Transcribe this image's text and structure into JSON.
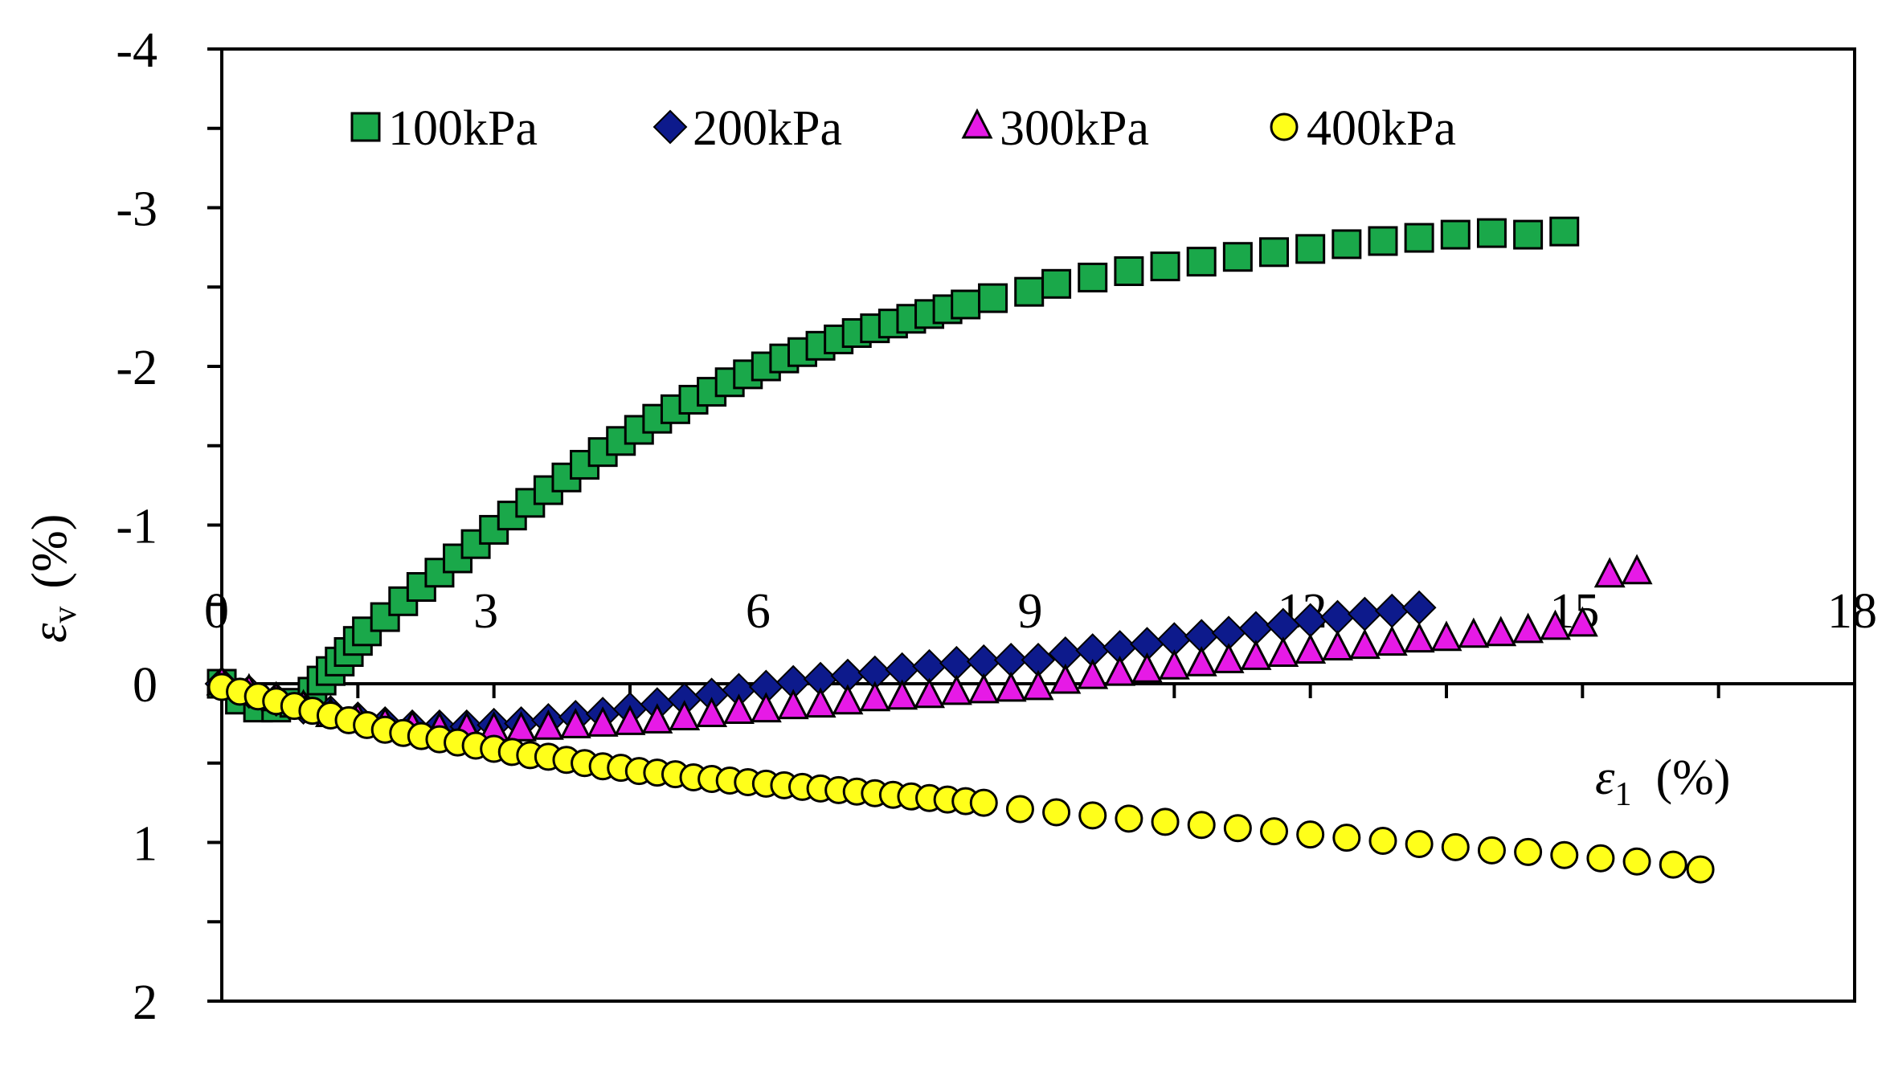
{
  "chart_data": {
    "type": "scatter",
    "xlabel": "ε1 (%)",
    "xlabel_symbol": "ε",
    "xlabel_sub": "1",
    "xlabel_unit": "(%)",
    "ylabel": "εv (%)",
    "ylabel_symbol": "ε",
    "ylabel_sub": "v",
    "ylabel_unit": "(%)",
    "xlim": [
      0,
      18
    ],
    "ylim": [
      2,
      -4
    ],
    "y_inverted": true,
    "x_ticks": [
      0,
      3,
      6,
      9,
      12,
      15,
      18
    ],
    "x_tick_labels": [
      "0",
      "3",
      "6",
      "9",
      "12",
      "15",
      "18"
    ],
    "y_ticks": [
      -4,
      -3,
      -2,
      -1,
      0,
      1,
      2
    ],
    "y_tick_labels": [
      "-4",
      "-3",
      "-2",
      "-1",
      "0",
      "1",
      "2"
    ],
    "x_tick_labels_position": "along zero line",
    "grid": false,
    "legend_position": "top",
    "series": [
      {
        "name": "100kPa",
        "marker": "square",
        "color": "#1aa84a",
        "x": [
          0,
          0.2,
          0.4,
          0.6,
          0.8,
          1.0,
          1.1,
          1.2,
          1.3,
          1.4,
          1.5,
          1.6,
          1.8,
          2.0,
          2.2,
          2.4,
          2.6,
          2.8,
          3.0,
          3.2,
          3.4,
          3.6,
          3.8,
          4.0,
          4.2,
          4.4,
          4.6,
          4.8,
          5.0,
          5.2,
          5.4,
          5.6,
          5.8,
          6.0,
          6.2,
          6.4,
          6.6,
          6.8,
          7.0,
          7.2,
          7.4,
          7.6,
          7.8,
          8.0,
          8.2,
          8.5,
          8.9,
          9.2,
          9.6,
          10.0,
          10.4,
          10.8,
          11.2,
          11.6,
          12.0,
          12.4,
          12.8,
          13.2,
          13.6,
          14.0,
          14.4,
          14.8
        ],
        "y": [
          0.0,
          0.1,
          0.15,
          0.15,
          0.12,
          0.05,
          -0.02,
          -0.08,
          -0.14,
          -0.2,
          -0.27,
          -0.33,
          -0.42,
          -0.52,
          -0.61,
          -0.7,
          -0.79,
          -0.88,
          -0.97,
          -1.06,
          -1.14,
          -1.22,
          -1.3,
          -1.38,
          -1.46,
          -1.53,
          -1.6,
          -1.67,
          -1.73,
          -1.79,
          -1.84,
          -1.9,
          -1.95,
          -2.0,
          -2.05,
          -2.09,
          -2.13,
          -2.17,
          -2.21,
          -2.24,
          -2.27,
          -2.3,
          -2.33,
          -2.36,
          -2.39,
          -2.43,
          -2.47,
          -2.52,
          -2.56,
          -2.6,
          -2.63,
          -2.66,
          -2.69,
          -2.72,
          -2.74,
          -2.77,
          -2.79,
          -2.81,
          -2.83,
          -2.84,
          -2.83,
          -2.85
        ]
      },
      {
        "name": "200kPa",
        "marker": "diamond",
        "color": "#0d1a8c",
        "x": [
          0,
          0.3,
          0.6,
          0.9,
          1.2,
          1.5,
          1.8,
          2.1,
          2.4,
          2.7,
          3.0,
          3.3,
          3.6,
          3.9,
          4.2,
          4.5,
          4.8,
          5.1,
          5.4,
          5.7,
          6.0,
          6.3,
          6.6,
          6.9,
          7.2,
          7.5,
          7.8,
          8.1,
          8.4,
          8.7,
          9.0,
          9.3,
          9.6,
          9.9,
          10.2,
          10.5,
          10.8,
          11.1,
          11.4,
          11.7,
          12.0,
          12.3,
          12.6,
          12.9,
          13.2
        ],
        "y": [
          0.0,
          0.05,
          0.1,
          0.15,
          0.18,
          0.22,
          0.25,
          0.27,
          0.27,
          0.27,
          0.26,
          0.25,
          0.23,
          0.21,
          0.19,
          0.16,
          0.13,
          0.1,
          0.07,
          0.04,
          0.02,
          -0.01,
          -0.03,
          -0.05,
          -0.07,
          -0.09,
          -0.11,
          -0.13,
          -0.14,
          -0.15,
          -0.15,
          -0.19,
          -0.21,
          -0.23,
          -0.25,
          -0.28,
          -0.3,
          -0.32,
          -0.35,
          -0.37,
          -0.4,
          -0.42,
          -0.44,
          -0.46,
          -0.48
        ]
      },
      {
        "name": "300kPa",
        "marker": "triangle",
        "color": "#e61ae6",
        "x": [
          0,
          0.3,
          0.6,
          0.9,
          1.2,
          1.5,
          1.8,
          2.1,
          2.4,
          2.7,
          3.0,
          3.3,
          3.6,
          3.9,
          4.2,
          4.5,
          4.8,
          5.1,
          5.4,
          5.7,
          6.0,
          6.3,
          6.6,
          6.9,
          7.2,
          7.5,
          7.8,
          8.1,
          8.4,
          8.7,
          9.0,
          9.3,
          9.6,
          9.9,
          10.2,
          10.5,
          10.8,
          11.1,
          11.4,
          11.7,
          12.0,
          12.3,
          12.6,
          12.9,
          13.2,
          13.5,
          13.8,
          14.1,
          14.4,
          14.7,
          15.0,
          15.3,
          15.6
        ],
        "y": [
          0.0,
          0.05,
          0.1,
          0.15,
          0.2,
          0.23,
          0.26,
          0.28,
          0.29,
          0.29,
          0.29,
          0.29,
          0.28,
          0.27,
          0.26,
          0.25,
          0.24,
          0.22,
          0.2,
          0.18,
          0.17,
          0.15,
          0.14,
          0.12,
          0.1,
          0.09,
          0.08,
          0.06,
          0.05,
          0.04,
          0.03,
          -0.01,
          -0.04,
          -0.06,
          -0.08,
          -0.1,
          -0.12,
          -0.14,
          -0.16,
          -0.18,
          -0.2,
          -0.22,
          -0.23,
          -0.25,
          -0.27,
          -0.28,
          -0.3,
          -0.31,
          -0.33,
          -0.35,
          -0.37,
          -0.68,
          -0.7
        ]
      },
      {
        "name": "400kPa",
        "marker": "circle",
        "color": "#ffff1a",
        "x": [
          0,
          0.2,
          0.4,
          0.6,
          0.8,
          1.0,
          1.2,
          1.4,
          1.6,
          1.8,
          2.0,
          2.2,
          2.4,
          2.6,
          2.8,
          3.0,
          3.2,
          3.4,
          3.6,
          3.8,
          4.0,
          4.2,
          4.4,
          4.6,
          4.8,
          5.0,
          5.2,
          5.4,
          5.6,
          5.8,
          6.0,
          6.2,
          6.4,
          6.6,
          6.8,
          7.0,
          7.2,
          7.4,
          7.6,
          7.8,
          8.0,
          8.2,
          8.4,
          8.8,
          9.2,
          9.6,
          10.0,
          10.4,
          10.8,
          11.2,
          11.6,
          12.0,
          12.4,
          12.8,
          13.2,
          13.6,
          14.0,
          14.4,
          14.8,
          15.2,
          15.6,
          16.0,
          16.3
        ],
        "y": [
          0.02,
          0.05,
          0.08,
          0.11,
          0.14,
          0.17,
          0.2,
          0.23,
          0.26,
          0.29,
          0.31,
          0.33,
          0.35,
          0.37,
          0.39,
          0.41,
          0.43,
          0.45,
          0.46,
          0.48,
          0.5,
          0.52,
          0.53,
          0.55,
          0.56,
          0.57,
          0.59,
          0.6,
          0.61,
          0.62,
          0.63,
          0.64,
          0.65,
          0.66,
          0.67,
          0.68,
          0.69,
          0.7,
          0.71,
          0.72,
          0.73,
          0.74,
          0.75,
          0.79,
          0.81,
          0.83,
          0.85,
          0.87,
          0.89,
          0.91,
          0.93,
          0.95,
          0.97,
          0.99,
          1.01,
          1.03,
          1.05,
          1.06,
          1.08,
          1.1,
          1.12,
          1.14,
          1.17
        ]
      }
    ]
  }
}
